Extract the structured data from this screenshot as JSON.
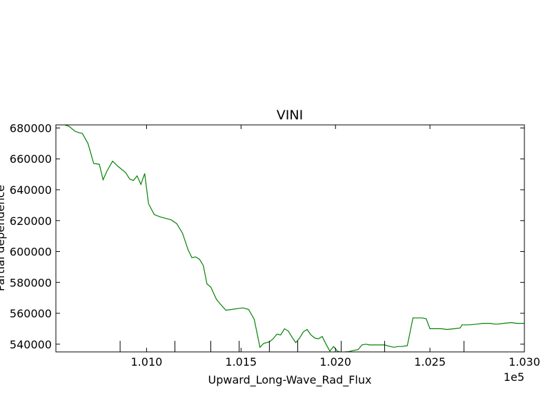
{
  "chart_data": {
    "type": "line",
    "title": "VINI",
    "xlabel": "Upward_Long-Wave_Rad_Flux",
    "ylabel": "Partial dependence",
    "x_offset_text": "1e5",
    "xlim": [
      1.0052,
      1.03
    ],
    "ylim": [
      535000,
      682000
    ],
    "x_ticks": [
      1.01,
      1.015,
      1.02,
      1.025,
      1.03
    ],
    "x_tick_labels": [
      "1.010",
      "1.015",
      "1.020",
      "1.025",
      "1.030"
    ],
    "y_ticks": [
      540000,
      560000,
      580000,
      600000,
      620000,
      640000,
      660000,
      680000
    ],
    "y_tick_labels": [
      "540000",
      "560000",
      "580000",
      "600000",
      "620000",
      "640000",
      "660000",
      "680000"
    ],
    "rug_x": [
      1.0086,
      1.0115,
      1.0134,
      1.0149,
      1.0165,
      1.018,
      1.0203,
      1.0226,
      1.0268
    ],
    "grid": false,
    "line_color": "#008000",
    "series": [
      {
        "x": [
          1.0052,
          1.0059,
          1.0062,
          1.0064,
          1.0066,
          1.0069,
          1.0072,
          1.0075,
          1.0077,
          1.0079,
          1.0082,
          1.0085,
          1.0089,
          1.0091,
          1.0093,
          1.0095,
          1.0097,
          1.0099,
          1.0101,
          1.0104,
          1.0107,
          1.011,
          1.0113,
          1.0116,
          1.0119,
          1.0122,
          1.0124,
          1.0126,
          1.0128,
          1.013,
          1.0132,
          1.0134,
          1.0137,
          1.0139,
          1.0142,
          1.0145,
          1.0148,
          1.0151,
          1.0154,
          1.0157,
          1.016,
          1.0162,
          1.0165,
          1.0167,
          1.0169,
          1.0171,
          1.0173,
          1.0175,
          1.0177,
          1.0179,
          1.0181,
          1.0183,
          1.0185,
          1.0187,
          1.0189,
          1.0191,
          1.0193,
          1.0195,
          1.0197,
          1.0199,
          1.0201,
          1.0203,
          1.0205,
          1.0207,
          1.0209,
          1.0212,
          1.0214,
          1.0216,
          1.0218,
          1.0222,
          1.0226,
          1.0229,
          1.0231,
          1.0233,
          1.0235,
          1.0238,
          1.0241,
          1.0244,
          1.0246,
          1.0248,
          1.025,
          1.0252,
          1.0254,
          1.0256,
          1.0259,
          1.0263,
          1.0266,
          1.0267,
          1.0271,
          1.0275,
          1.0278,
          1.0282,
          1.0284,
          1.0286,
          1.0289,
          1.0293,
          1.0296,
          1.03
        ],
        "y": [
          684000,
          681000,
          678000,
          677000,
          676500,
          670000,
          657000,
          656500,
          646500,
          652000,
          658500,
          655000,
          651000,
          647000,
          646000,
          649000,
          643500,
          650500,
          631000,
          624000,
          622500,
          621500,
          620500,
          618000,
          612000,
          601000,
          596000,
          596500,
          595000,
          591000,
          579000,
          577000,
          569000,
          566000,
          562000,
          562500,
          563000,
          563500,
          562500,
          556000,
          538000,
          540500,
          541500,
          543500,
          546500,
          546000,
          550000,
          548500,
          544500,
          541000,
          544000,
          548000,
          549500,
          546000,
          544000,
          543500,
          545000,
          540000,
          535500,
          538500,
          535500,
          534800,
          535000,
          535200,
          535800,
          536500,
          539500,
          540000,
          539500,
          539500,
          539500,
          538500,
          538000,
          538500,
          538500,
          539000,
          557000,
          557000,
          557000,
          556500,
          550000,
          550000,
          550000,
          550000,
          549500,
          550000,
          550500,
          552500,
          552500,
          553000,
          553500,
          553500,
          553000,
          553000,
          553500,
          554000,
          553500,
          553500
        ]
      }
    ]
  }
}
